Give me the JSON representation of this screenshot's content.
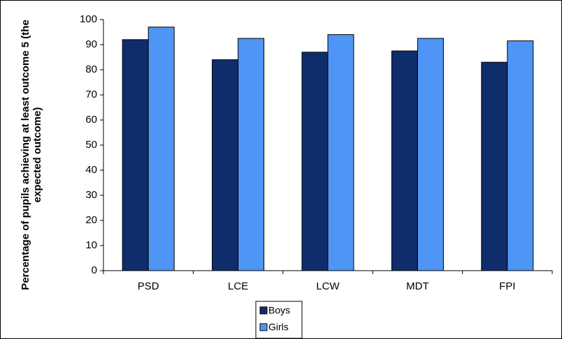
{
  "chart_data": {
    "type": "bar",
    "y_label": "Percentage of pupils achieving at least outcome 5 (the expected outcome)",
    "categories": [
      "PSD",
      "LCE",
      "LCW",
      "MDT",
      "FPI"
    ],
    "series": [
      {
        "name": "Boys",
        "color": "#0f2d6b",
        "values": [
          92,
          84,
          87,
          87.5,
          83
        ]
      },
      {
        "name": "Girls",
        "color": "#4f95f5",
        "values": [
          97,
          92.5,
          94,
          92.5,
          91.5
        ]
      }
    ],
    "ylim": [
      0,
      100
    ],
    "yticks": [
      0,
      10,
      20,
      30,
      40,
      50,
      60,
      70,
      80,
      90,
      100
    ],
    "grid": false
  }
}
